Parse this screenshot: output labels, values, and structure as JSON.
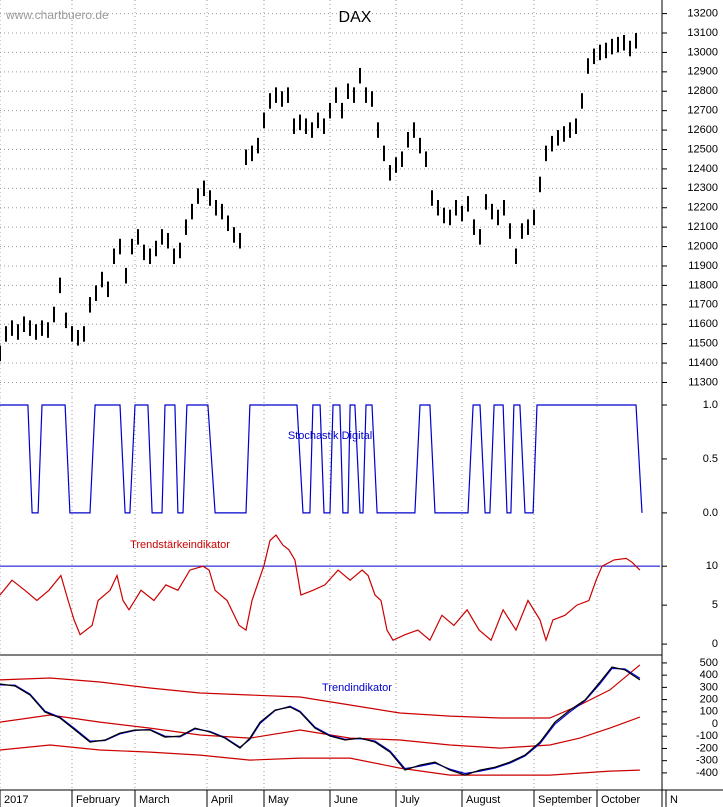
{
  "source": "www.chartbuero.de",
  "chart_data": [
    {
      "type": "ohlc",
      "title": "DAX",
      "title_color": "#000000",
      "color": "#000000",
      "grid": true,
      "xlim": [
        0,
        220
      ],
      "ylim": [
        11220,
        13270
      ],
      "yticks": [
        11300,
        11400,
        11500,
        11600,
        11700,
        11800,
        11900,
        12000,
        12100,
        12200,
        12300,
        12400,
        12500,
        12600,
        12700,
        12800,
        12900,
        13000,
        13100,
        13200
      ],
      "x": [
        0,
        2,
        4,
        6,
        8,
        10,
        12,
        14,
        16,
        18,
        20,
        22,
        24,
        26,
        28,
        30,
        32,
        34,
        36,
        38,
        40,
        42,
        44,
        46,
        48,
        50,
        52,
        54,
        56,
        58,
        60,
        62,
        64,
        66,
        68,
        70,
        72,
        74,
        76,
        78,
        80,
        82,
        84,
        86,
        88,
        90,
        92,
        94,
        96,
        98,
        100,
        102,
        104,
        106,
        108,
        110,
        112,
        114,
        116,
        118,
        120,
        122,
        124,
        126,
        128,
        130,
        132,
        134,
        136,
        138,
        140,
        142,
        144,
        146,
        148,
        150,
        152,
        154,
        156,
        158,
        160,
        162,
        164,
        166,
        168,
        170,
        172,
        174,
        176,
        178,
        180,
        182,
        184,
        186,
        188,
        190,
        192,
        194,
        196,
        198,
        200,
        202,
        204,
        206,
        208,
        210,
        212
      ],
      "high": [
        11490,
        11590,
        11620,
        11600,
        11640,
        11620,
        11600,
        11620,
        11610,
        11690,
        11840,
        11660,
        11590,
        11570,
        11590,
        11740,
        11800,
        11870,
        11820,
        11990,
        12040,
        11890,
        12040,
        12090,
        12010,
        11990,
        12030,
        12090,
        12070,
        11990,
        12020,
        12140,
        12220,
        12300,
        12340,
        12290,
        12240,
        12220,
        12160,
        12100,
        12070,
        12500,
        12520,
        12560,
        12690,
        12790,
        12820,
        12800,
        12820,
        12660,
        12680,
        12660,
        12640,
        12690,
        12660,
        12740,
        12820,
        12740,
        12840,
        12820,
        12920,
        12820,
        12800,
        12640,
        12520,
        12420,
        12460,
        12490,
        12590,
        12640,
        12560,
        12490,
        12290,
        12240,
        12200,
        12190,
        12240,
        12210,
        12260,
        12140,
        12090,
        12270,
        12220,
        12190,
        12240,
        12120,
        11990,
        12120,
        12140,
        12190,
        12360,
        12520,
        12570,
        12600,
        12620,
        12640,
        12660,
        12790,
        12970,
        13020,
        13040,
        13050,
        13070,
        13080,
        13090,
        13060,
        13100
      ],
      "low": [
        11410,
        11510,
        11540,
        11520,
        11560,
        11540,
        11520,
        11540,
        11530,
        11610,
        11760,
        11580,
        11510,
        11490,
        11510,
        11660,
        11720,
        11790,
        11740,
        11910,
        11960,
        11810,
        11960,
        12010,
        11930,
        11910,
        11950,
        12010,
        11990,
        11910,
        11940,
        12060,
        12140,
        12220,
        12260,
        12210,
        12160,
        12140,
        12080,
        12020,
        11990,
        12420,
        12440,
        12480,
        12610,
        12710,
        12740,
        12720,
        12740,
        12580,
        12600,
        12580,
        12560,
        12610,
        12580,
        12660,
        12740,
        12660,
        12760,
        12740,
        12840,
        12740,
        12720,
        12560,
        12440,
        12340,
        12380,
        12410,
        12510,
        12560,
        12480,
        12410,
        12210,
        12160,
        12120,
        12110,
        12160,
        12130,
        12180,
        12060,
        12010,
        12190,
        12140,
        12110,
        12160,
        12040,
        11910,
        12040,
        12060,
        12110,
        12280,
        12440,
        12490,
        12520,
        12540,
        12560,
        12580,
        12710,
        12890,
        12940,
        12960,
        12970,
        12990,
        13000,
        13010,
        12980,
        13020
      ]
    },
    {
      "type": "line",
      "title": "Stochastik Digital",
      "title_color": "#0000cc",
      "color": "#0000cc",
      "grid": false,
      "xlim": [
        0,
        220
      ],
      "ylim": [
        -0.14,
        1.065
      ],
      "yticks": [
        {
          "value": 0,
          "label": "0.0"
        },
        0.5,
        {
          "value": 1,
          "label": "1.0"
        }
      ],
      "x": [
        0,
        9.3,
        10.7,
        12.7,
        14,
        21.7,
        23.3,
        30,
        31.7,
        40,
        41.7,
        43.3,
        45,
        49.3,
        50.7,
        54,
        55,
        58.3,
        59.3,
        61,
        62.3,
        69.3,
        71.7,
        82,
        83.3,
        99,
        101,
        103.3,
        104.3,
        106.7,
        108,
        110,
        111,
        113.3,
        114.3,
        116,
        116.7,
        118.3,
        120,
        121,
        122,
        124,
        125.7,
        138.3,
        140,
        143.3,
        145,
        156,
        157.7,
        160,
        161.7,
        163.3,
        164.7,
        167.7,
        169,
        170.3,
        171.3,
        173.3,
        175,
        177.7,
        179,
        212,
        214
      ],
      "values": [
        1,
        1,
        0,
        0,
        1,
        1,
        0,
        0,
        1,
        1,
        0,
        0,
        1,
        1,
        0,
        0,
        1,
        1,
        0,
        0,
        1,
        1,
        0,
        0,
        1,
        1,
        0,
        0,
        1,
        1,
        0,
        0,
        1,
        1,
        0,
        0,
        1,
        1,
        0,
        0,
        1,
        1,
        0,
        0,
        1,
        1,
        0,
        0,
        1,
        1,
        0,
        0,
        1,
        1,
        0,
        0,
        1,
        1,
        0,
        0,
        1,
        1,
        0
      ]
    },
    {
      "type": "line",
      "title": "Trendstärkeindikator",
      "title_color": "#cc0000",
      "color": "#cc0000",
      "grid": false,
      "reference_line": 10,
      "reference_color": "#0000cc",
      "xlim": [
        0,
        220
      ],
      "ylim": [
        -1.4,
        14.9
      ],
      "yticks": [
        0,
        5,
        10
      ],
      "x": [
        0,
        4,
        8.3,
        12.3,
        16.3,
        20.3,
        22.7,
        24.7,
        26.7,
        30.7,
        32.7,
        36.7,
        39,
        41,
        43,
        47,
        51.3,
        55.3,
        59.3,
        63.3,
        67.7,
        69.7,
        71.7,
        75.7,
        79.7,
        82,
        84,
        88,
        90,
        92,
        94.3,
        96.3,
        98.3,
        100.3,
        104.3,
        108.3,
        112.7,
        116.7,
        120.7,
        122.7,
        125,
        127,
        129,
        131,
        135,
        139.3,
        143.3,
        147.3,
        151.3,
        155.7,
        159.7,
        163.7,
        167.7,
        172,
        176,
        180,
        182,
        184.3,
        188.3,
        192.3,
        196.3,
        198.7,
        200.7,
        204.7,
        208.7,
        210.7,
        213.3
      ],
      "values": [
        6.3,
        8.2,
        6.9,
        5.6,
        6.9,
        8.8,
        5.6,
        3.1,
        1.2,
        2.4,
        5.6,
        6.9,
        8.8,
        5.6,
        4.4,
        6.9,
        5.6,
        7.6,
        6.9,
        9.5,
        10,
        9.5,
        6.9,
        5.6,
        2.4,
        1.8,
        5.6,
        10.1,
        13.3,
        14,
        12.7,
        12.1,
        10.8,
        6.3,
        6.9,
        7.6,
        9.5,
        8.2,
        9.5,
        8.8,
        6.3,
        5.6,
        1.8,
        0.5,
        1.2,
        1.8,
        0.5,
        3.7,
        2.4,
        4.4,
        1.8,
        0.5,
        4.4,
        1.8,
        5.6,
        3.1,
        0.5,
        3.1,
        3.7,
        5,
        5.6,
        8.2,
        10,
        10.8,
        11,
        10.5,
        9.5
      ]
    },
    {
      "type": "multiline",
      "title": "Trendindikator",
      "title_color": "#0000cc",
      "grid": true,
      "xlim": [
        0,
        220
      ],
      "ylim": [
        -540,
        565
      ],
      "yticks": [
        500,
        400,
        300,
        200,
        100,
        0,
        -100,
        -200,
        -300,
        -400
      ],
      "xticks": [
        {
          "value": 0,
          "label": "2017"
        },
        {
          "value": 24,
          "label": "February"
        },
        {
          "value": 45,
          "label": "March"
        },
        {
          "value": 69,
          "label": "April"
        },
        {
          "value": 88,
          "label": "May"
        },
        {
          "value": 110,
          "label": "June"
        },
        {
          "value": 132,
          "label": "July"
        },
        {
          "value": 154,
          "label": "August"
        },
        {
          "value": 178,
          "label": "September"
        },
        {
          "value": 199,
          "label": "October"
        },
        {
          "value": 222,
          "label": "N"
        }
      ],
      "series": [
        {
          "color": "#cc0000",
          "x": [
            0,
            16.7,
            33.3,
            50,
            66.7,
            83.3,
            100,
            116.7,
            133.3,
            150,
            166.7,
            183.3,
            193.3,
            203.3,
            213.3
          ],
          "values": [
            361,
            377,
            344,
            295,
            254,
            238,
            221,
            156,
            90,
            65,
            49,
            49,
            156,
            279,
            484
          ]
        },
        {
          "color": "#cc0000",
          "x": [
            0,
            16.7,
            33.3,
            50,
            66.7,
            83.3,
            100,
            116.7,
            133.3,
            150,
            166.7,
            183.3,
            193.3,
            203.3,
            213.3
          ],
          "values": [
            16,
            74,
            16,
            -33,
            -90,
            -115,
            -49,
            -115,
            -131,
            -172,
            -197,
            -172,
            -115,
            -33,
            57
          ]
        },
        {
          "color": "#cc0000",
          "x": [
            0,
            16.7,
            33.3,
            50,
            66.7,
            83.3,
            100,
            116.7,
            133.3,
            150,
            166.7,
            183.3,
            193.3,
            203.3,
            213.3
          ],
          "values": [
            -213,
            -172,
            -213,
            -230,
            -254,
            -295,
            -279,
            -279,
            -361,
            -418,
            -418,
            -418,
            -402,
            -385,
            -377
          ]
        },
        {
          "color": "#0000cc",
          "x": [
            0,
            5,
            10,
            15,
            20,
            25,
            30,
            35,
            40,
            45,
            50,
            55,
            60,
            65,
            70,
            75,
            80,
            83.3,
            86.7,
            91.7,
            96.7,
            100,
            105,
            110,
            115,
            120,
            125,
            130,
            135,
            140,
            145,
            150,
            155,
            160,
            165,
            170,
            175,
            180,
            185,
            190,
            195,
            200,
            204,
            208.3,
            213.3
          ],
          "values": [
            320,
            318,
            245,
            105,
            55,
            -40,
            -140,
            -135,
            -80,
            -52,
            -45,
            -100,
            -105,
            -40,
            -60,
            -110,
            -190,
            -125,
            5,
            110,
            145,
            105,
            -25,
            -92,
            -125,
            -120,
            -140,
            -220,
            -365,
            -345,
            -320,
            -370,
            -405,
            -385,
            -360,
            -320,
            -262,
            -160,
            0,
            100,
            190,
            330,
            455,
            450,
            375
          ]
        },
        {
          "color": "#000000",
          "x": [
            0,
            5,
            10,
            15,
            20,
            25,
            30,
            35,
            40,
            45,
            50,
            55,
            60,
            65,
            70,
            75,
            80,
            83.3,
            86.7,
            91.7,
            96.7,
            100,
            105,
            110,
            115,
            120,
            125,
            130,
            135,
            140,
            145,
            150,
            155,
            160,
            165,
            170,
            175,
            180,
            185,
            190,
            195,
            200,
            204,
            208.3,
            213.3
          ],
          "values": [
            328,
            311,
            238,
            98,
            49,
            -49,
            -148,
            -131,
            -74,
            -49,
            -49,
            -107,
            -99,
            -33,
            -66,
            -115,
            -197,
            -115,
            16,
            115,
            139,
            98,
            -33,
            -99,
            -131,
            -115,
            -148,
            -230,
            -377,
            -336,
            -312,
            -377,
            -418,
            -377,
            -353,
            -312,
            -254,
            -148,
            16,
            115,
            197,
            344,
            467,
            443,
            361
          ]
        }
      ]
    }
  ]
}
